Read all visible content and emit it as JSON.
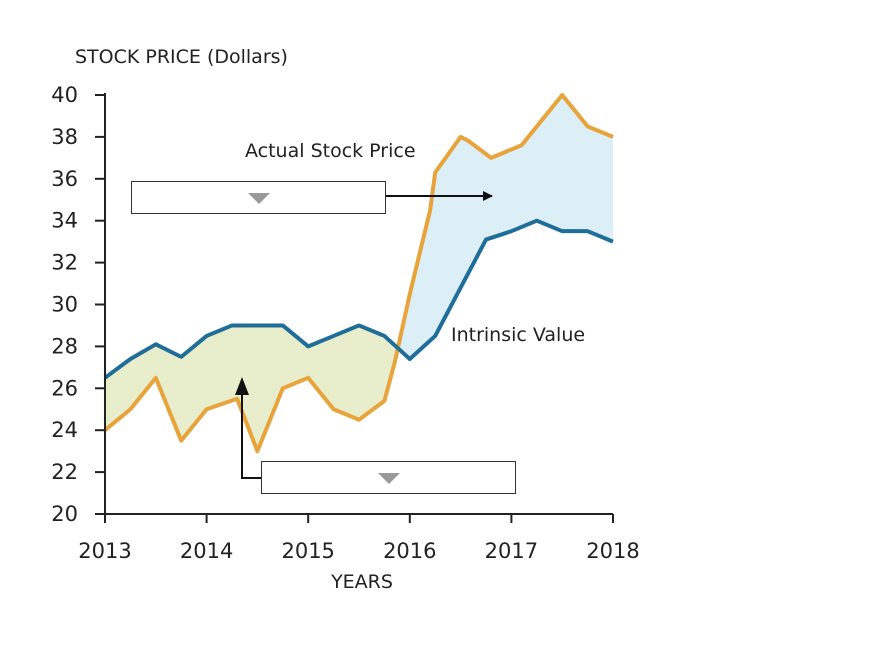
{
  "chart_data": {
    "type": "line",
    "ylabel": "STOCK PRICE (Dollars)",
    "xlabel": "YEARS",
    "ylim": [
      20,
      40
    ],
    "xlim": [
      2013,
      2018
    ],
    "x_ticks": [
      "2013",
      "2014",
      "2015",
      "2016",
      "2017",
      "2018"
    ],
    "y_ticks": [
      "20",
      "22",
      "24",
      "26",
      "28",
      "30",
      "32",
      "34",
      "36",
      "38",
      "40"
    ],
    "series": [
      {
        "name": "Actual Stock Price",
        "color": "#E8A33A",
        "points": [
          [
            2013.0,
            24.0
          ],
          [
            2013.25,
            25.0
          ],
          [
            2013.5,
            26.5
          ],
          [
            2013.75,
            23.5
          ],
          [
            2014.0,
            25.0
          ],
          [
            2014.3,
            25.5
          ],
          [
            2014.5,
            23.0
          ],
          [
            2014.75,
            26.0
          ],
          [
            2015.0,
            26.5
          ],
          [
            2015.25,
            25.0
          ],
          [
            2015.5,
            24.5
          ],
          [
            2015.75,
            25.4
          ],
          [
            2015.85,
            27.2
          ],
          [
            2016.0,
            30.5
          ],
          [
            2016.2,
            34.5
          ],
          [
            2016.25,
            36.3
          ],
          [
            2016.5,
            38.0
          ],
          [
            2016.58,
            37.8
          ],
          [
            2016.8,
            37.0
          ],
          [
            2017.1,
            37.6
          ],
          [
            2017.5,
            40.0
          ],
          [
            2017.75,
            38.5
          ],
          [
            2018.0,
            38.0
          ]
        ]
      },
      {
        "name": "Intrinsic Value",
        "color": "#1F6E99",
        "points": [
          [
            2013.0,
            26.5
          ],
          [
            2013.25,
            27.4
          ],
          [
            2013.5,
            28.1
          ],
          [
            2013.75,
            27.5
          ],
          [
            2014.0,
            28.5
          ],
          [
            2014.25,
            29.0
          ],
          [
            2014.5,
            29.0
          ],
          [
            2014.75,
            29.0
          ],
          [
            2015.0,
            28.0
          ],
          [
            2015.25,
            28.5
          ],
          [
            2015.5,
            29.0
          ],
          [
            2015.75,
            28.5
          ],
          [
            2016.0,
            27.4
          ],
          [
            2016.25,
            28.5
          ],
          [
            2016.5,
            30.8
          ],
          [
            2016.75,
            33.1
          ],
          [
            2017.0,
            33.5
          ],
          [
            2017.25,
            34.0
          ],
          [
            2017.5,
            33.5
          ],
          [
            2017.75,
            33.5
          ],
          [
            2018.0,
            33.0
          ]
        ]
      }
    ],
    "annotations": [
      {
        "text": "Actual Stock Price"
      },
      {
        "text": "Intrinsic Value"
      }
    ],
    "shaded_regions": [
      {
        "color": "#E8EECC",
        "between": "Intrinsic Value above Actual Stock Price"
      },
      {
        "color": "#DCEEF6",
        "between": "Actual Stock Price above Intrinsic Value"
      }
    ]
  },
  "dropdowns": [
    {
      "selected": ""
    },
    {
      "selected": ""
    }
  ]
}
